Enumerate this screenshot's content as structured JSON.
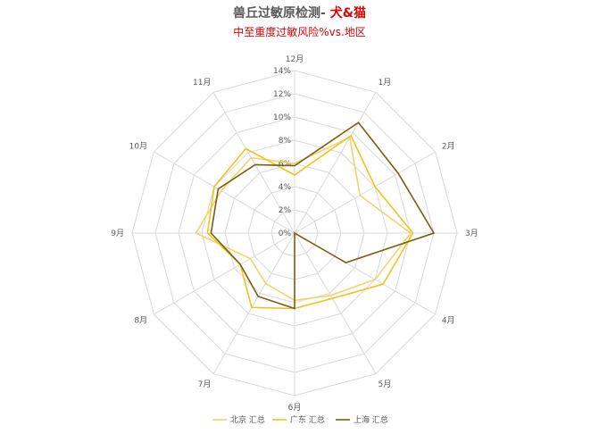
{
  "title": {
    "main": "兽丘过敏原检测- ",
    "accent": "犬&猫",
    "subtitle": "中至重度过敏风险%vs.地区"
  },
  "chart_data": {
    "type": "radar",
    "categories": [
      "1月",
      "2月",
      "3月",
      "4月",
      "5月",
      "6月",
      "7月",
      "8月",
      "9月",
      "10月",
      "11月",
      "12月"
    ],
    "rlim": [
      0,
      14
    ],
    "ticks": [
      0,
      2,
      4,
      6,
      8,
      10,
      12,
      14
    ],
    "tick_labels": [
      "0%",
      "2%",
      "4%",
      "6%",
      "8%",
      "10%",
      "12%",
      "14%"
    ],
    "grid": true,
    "legend_position": "bottom",
    "series": [
      {
        "name": "北京 汇总",
        "color": "#f3d36b",
        "values": [
          9.5,
          6.5,
          10.0,
          8.0,
          6.2,
          5.8,
          5.0,
          4.4,
          8.5,
          7.3,
          7.5,
          6.0
        ]
      },
      {
        "name": "广东 汇总",
        "color": "#f2c31c",
        "values": [
          9.7,
          8.0,
          10.2,
          8.8,
          6.5,
          6.5,
          7.4,
          5.4,
          7.5,
          8.0,
          8.4,
          5.0
        ]
      },
      {
        "name": "上海 汇总",
        "color": "#7a5e10",
        "values": [
          11.0,
          10.3,
          12.0,
          5.1,
          0.0,
          6.5,
          6.3,
          5.4,
          7.2,
          7.6,
          6.8,
          5.8
        ]
      }
    ]
  }
}
